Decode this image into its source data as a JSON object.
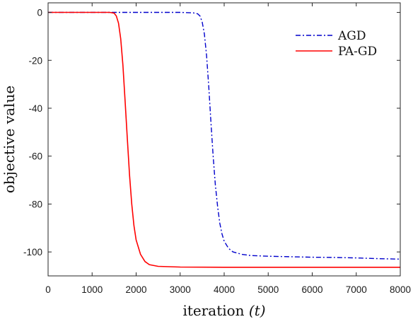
{
  "chart_data": {
    "type": "line",
    "xlabel_main": "iteration",
    "xlabel_var": "(t)",
    "ylabel": "objective value",
    "xlim": [
      0,
      8000
    ],
    "ylim": [
      -110,
      4
    ],
    "xticks": [
      0,
      1000,
      2000,
      3000,
      4000,
      5000,
      6000,
      7000,
      8000
    ],
    "xtick_labels": [
      "0",
      "1000",
      "2000",
      "3000",
      "4000",
      "5000",
      "6000",
      "7000",
      "8000"
    ],
    "yticks": [
      0,
      -20,
      -40,
      -60,
      -80,
      -100
    ],
    "ytick_labels": [
      "0",
      "-20",
      "-40",
      "-60",
      "-80",
      "-100"
    ],
    "grid": false,
    "legend_position": "top-right",
    "series": [
      {
        "name": "AGD",
        "color": "#0000cc",
        "style": "dash-dot",
        "x": [
          0,
          1000,
          2000,
          3000,
          3300,
          3400,
          3450,
          3500,
          3550,
          3600,
          3650,
          3700,
          3750,
          3800,
          3850,
          3900,
          3950,
          4000,
          4100,
          4200,
          4400,
          4600,
          5000,
          5500,
          6000,
          6500,
          7000,
          7500,
          8000
        ],
        "y": [
          0,
          0,
          0,
          0,
          -0.2,
          -0.6,
          -1.5,
          -4,
          -9,
          -18,
          -31,
          -46,
          -60,
          -72,
          -81,
          -88,
          -92.5,
          -95.5,
          -98.5,
          -100,
          -101,
          -101.5,
          -101.8,
          -102,
          -102.2,
          -102.3,
          -102.5,
          -102.8,
          -103
        ]
      },
      {
        "name": "PA-GD",
        "color": "#ff0000",
        "style": "solid",
        "x": [
          0,
          1000,
          1400,
          1500,
          1550,
          1600,
          1650,
          1700,
          1750,
          1800,
          1850,
          1900,
          1950,
          2000,
          2100,
          2200,
          2300,
          2500,
          3000,
          4000,
          5000,
          6000,
          7000,
          8000
        ],
        "y": [
          0,
          0,
          0,
          -0.3,
          -1.5,
          -4.5,
          -11,
          -22,
          -37,
          -53,
          -68,
          -80,
          -89,
          -95,
          -101,
          -104,
          -105.3,
          -106,
          -106.3,
          -106.4,
          -106.4,
          -106.4,
          -106.4,
          -106.4
        ]
      }
    ]
  }
}
